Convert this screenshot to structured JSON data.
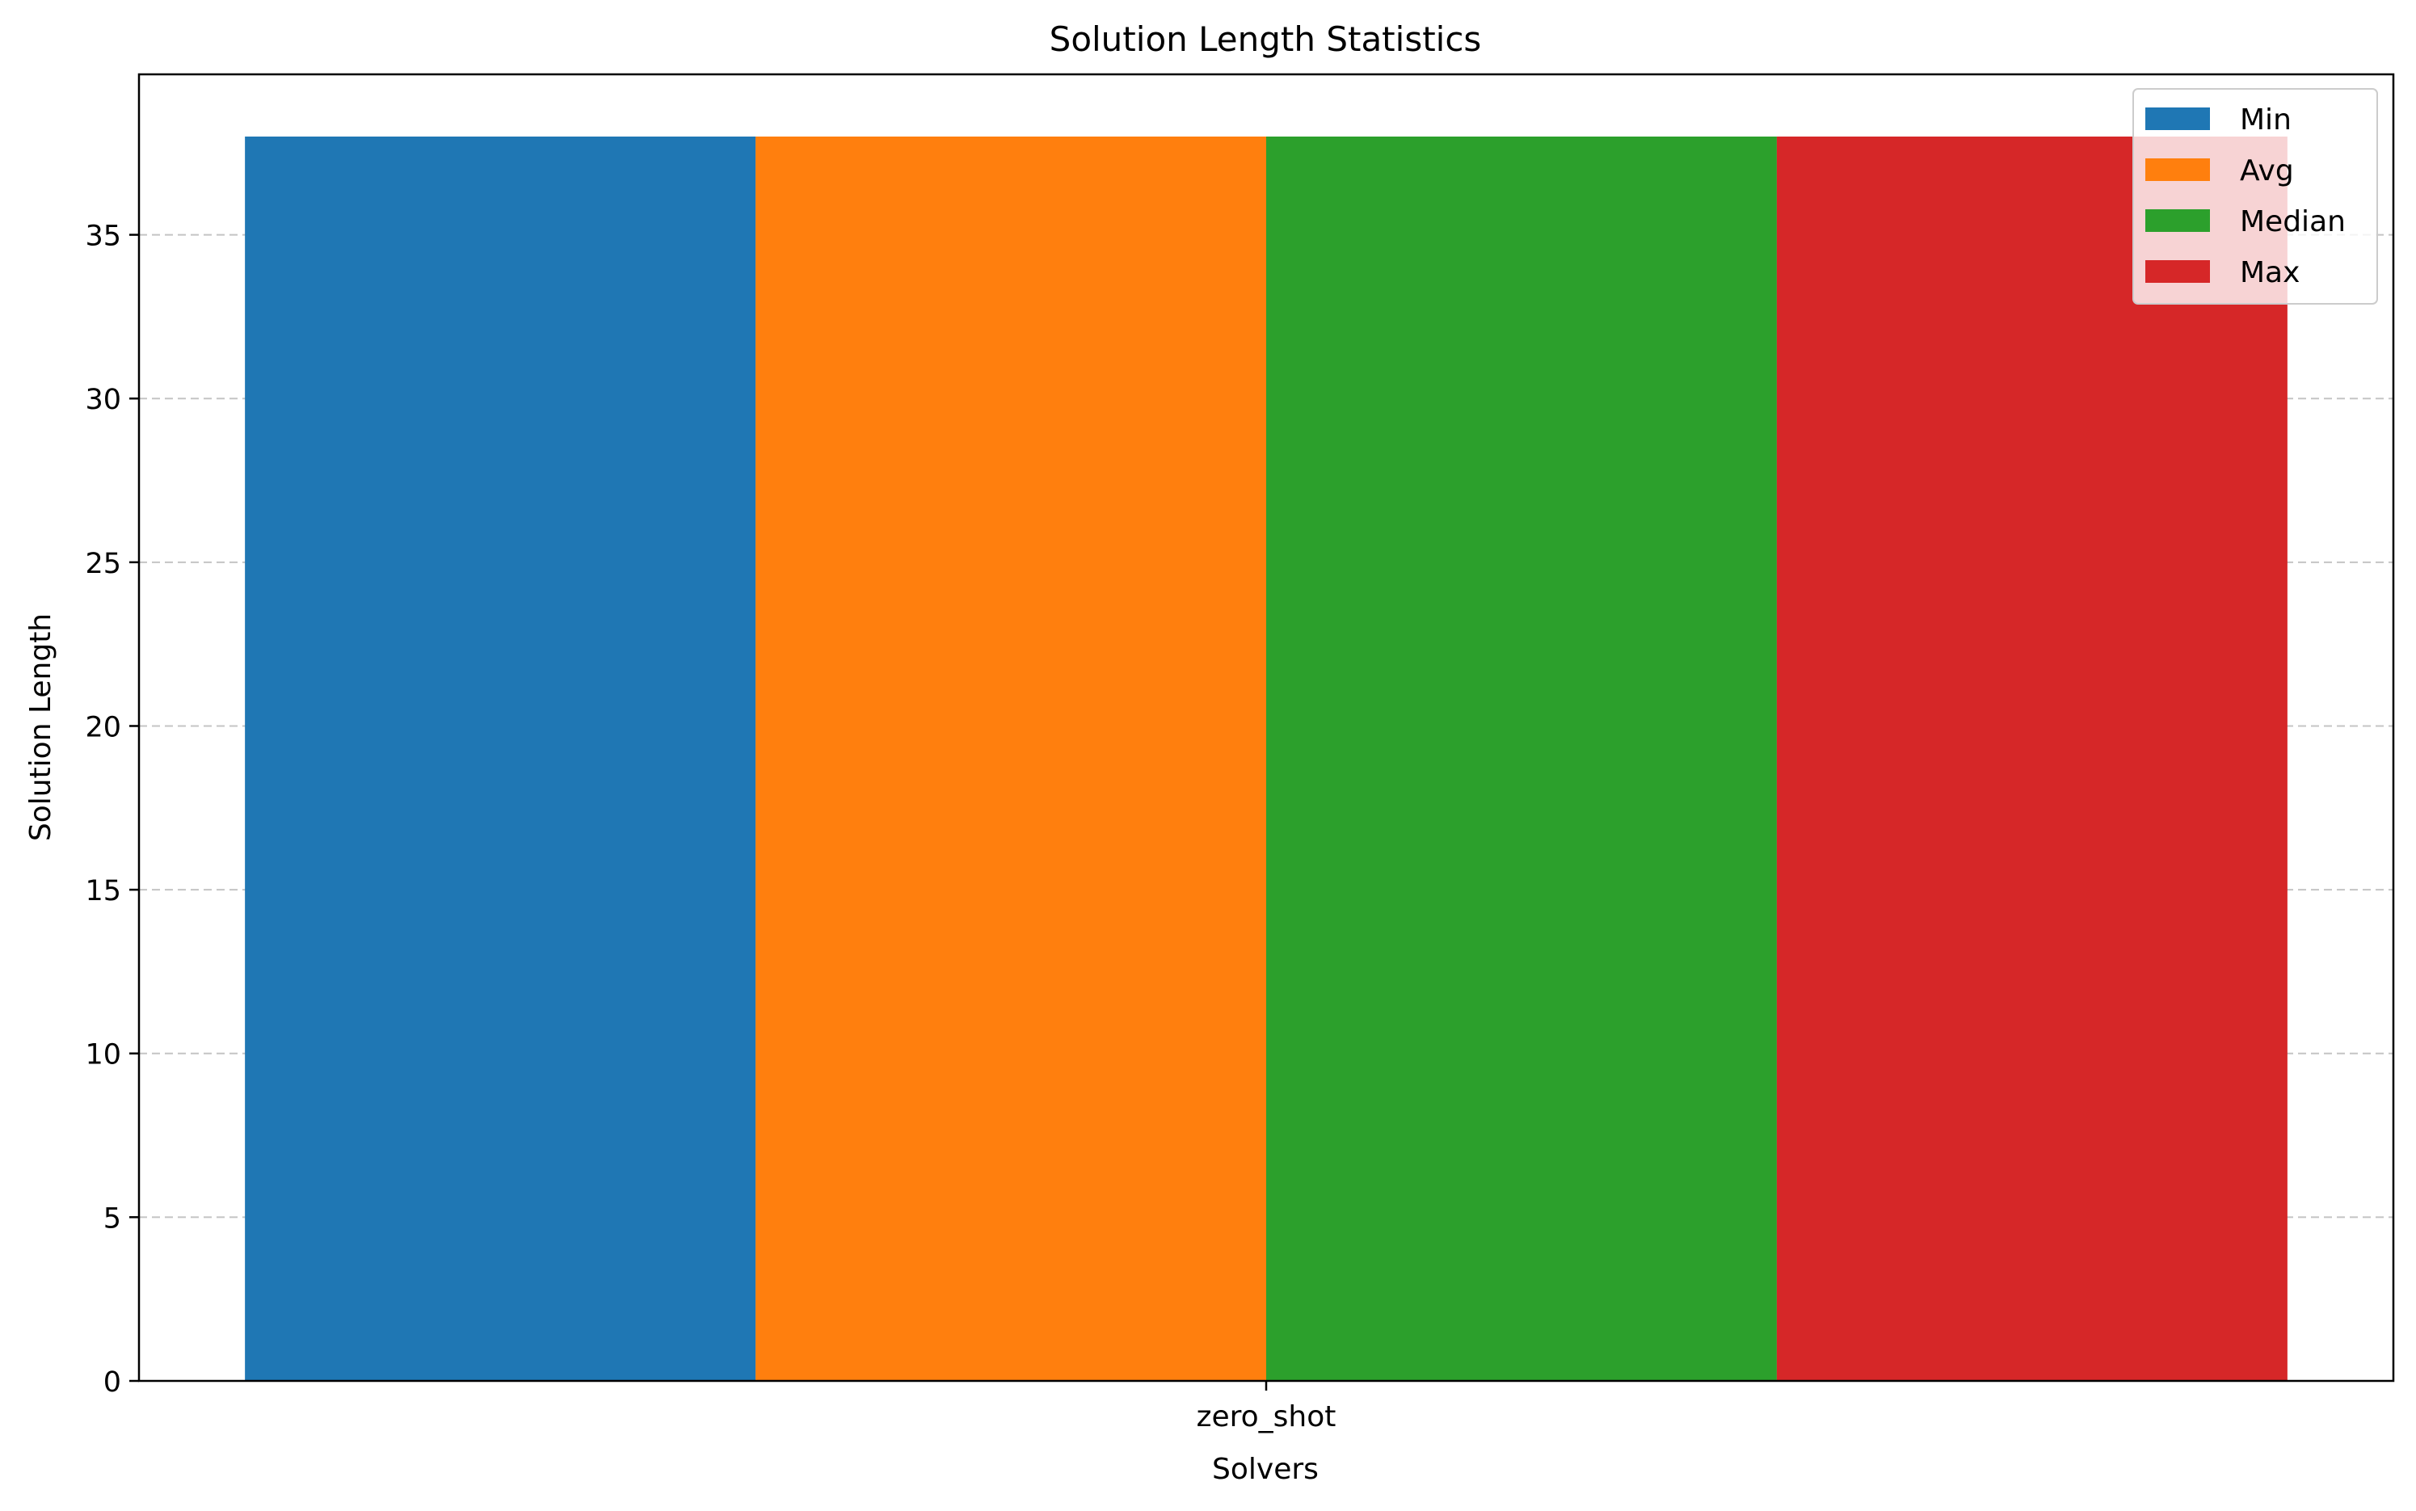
{
  "chart_data": {
    "type": "bar",
    "title": "Solution Length Statistics",
    "xlabel": "Solvers",
    "ylabel": "Solution Length",
    "categories": [
      "zero_shot"
    ],
    "series": [
      {
        "name": "Min",
        "values": [
          38
        ],
        "color": "#1f77b4"
      },
      {
        "name": "Avg",
        "values": [
          38
        ],
        "color": "#ff7f0e"
      },
      {
        "name": "Median",
        "values": [
          38
        ],
        "color": "#2ca02c"
      },
      {
        "name": "Max",
        "values": [
          38
        ],
        "color": "#d62728"
      }
    ],
    "ylim": [
      0,
      39.9
    ],
    "yticks": [
      "0",
      "5",
      "10",
      "15",
      "20",
      "25",
      "30",
      "35"
    ],
    "grid": "y-dashed",
    "legend": "top-right"
  }
}
